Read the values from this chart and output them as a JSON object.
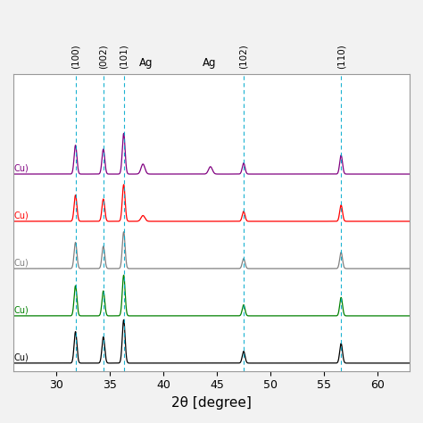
{
  "xlabel": "2θ [degree]",
  "xlim": [
    26,
    63
  ],
  "x_ticks": [
    30,
    35,
    40,
    45,
    50,
    55,
    60
  ],
  "dashed_lines": [
    31.8,
    34.4,
    36.3,
    47.5,
    56.6
  ],
  "colors": [
    "black",
    "green",
    "gray",
    "red",
    "purple"
  ],
  "offsets": [
    0.0,
    0.18,
    0.36,
    0.54,
    0.72
  ],
  "label_configs": [
    [
      31.8,
      "(100)",
      7.5,
      90
    ],
    [
      34.4,
      "(002)",
      7.5,
      90
    ],
    [
      36.3,
      "(101)",
      7.5,
      90
    ],
    [
      38.4,
      "Ag",
      8.5,
      0
    ],
    [
      44.3,
      "Ag",
      8.5,
      0
    ],
    [
      47.5,
      "(102)",
      7.5,
      90
    ],
    [
      56.6,
      "(110)",
      7.5,
      90
    ]
  ],
  "cu_labels_text": "Cu)",
  "background_color": "#F2F2F2",
  "ax_facecolor": "white"
}
